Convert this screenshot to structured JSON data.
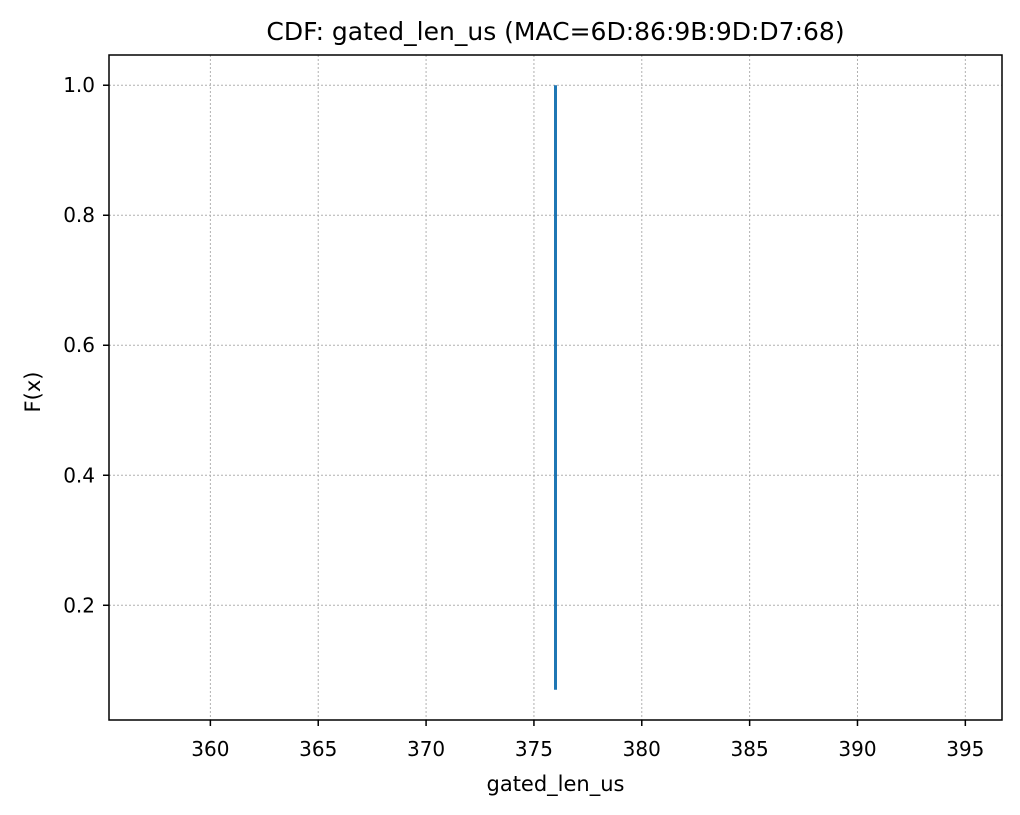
{
  "chart_data": {
    "type": "line",
    "title": "CDF: gated_len_us (MAC=6D:86:9B:9D:D7:68)",
    "xlabel": "gated_len_us",
    "ylabel": "F(x)",
    "xlim": [
      355.3,
      396.7
    ],
    "ylim": [
      0.0235,
      1.0465
    ],
    "x_ticks": [
      360,
      365,
      370,
      375,
      380,
      385,
      390,
      395
    ],
    "x_tick_labels": [
      "360",
      "365",
      "370",
      "375",
      "380",
      "385",
      "390",
      "395"
    ],
    "y_ticks": [
      0.2,
      0.4,
      0.6,
      0.8,
      1.0
    ],
    "y_tick_labels": [
      "0.2",
      "0.4",
      "0.6",
      "0.8",
      "1.0"
    ],
    "grid": true,
    "series": [
      {
        "color": "#1f77b4",
        "x": [
          376,
          376
        ],
        "y": [
          0.07,
          1.0
        ]
      }
    ]
  }
}
